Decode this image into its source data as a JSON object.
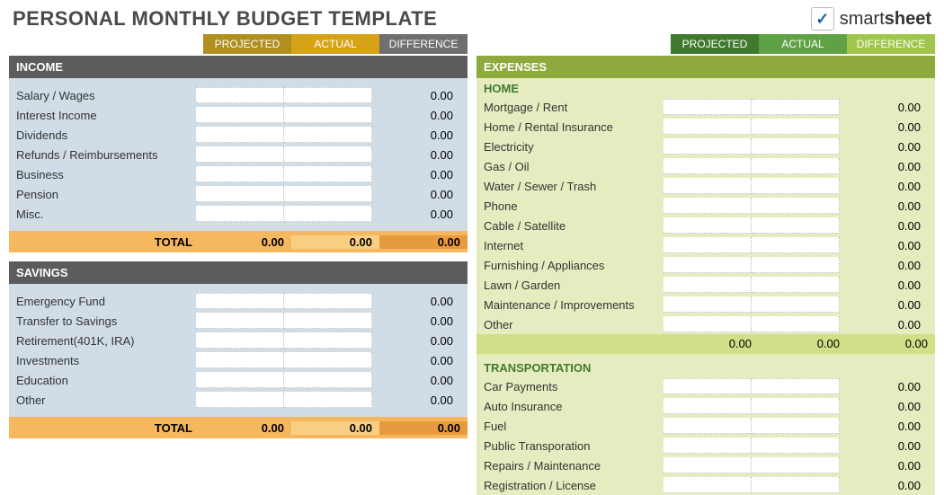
{
  "title": "PERSONAL MONTHLY BUDGET TEMPLATE",
  "logo": {
    "brand_bold": "smart",
    "brand_rest": "sheet"
  },
  "col_headers_left": {
    "projected": "PROJECTED",
    "actual": "ACTUAL",
    "difference": "DIFFERENCE"
  },
  "col_headers_right": {
    "projected": "PROJECTED",
    "actual": "ACTUAL",
    "difference": "DIFFERENCE"
  },
  "colors": {
    "left_headers": [
      "#b08f1f",
      "#d6a318",
      "#6f6f6f"
    ],
    "right_headers": [
      "#3f7a2f",
      "#5fa245",
      "#9fc64a"
    ],
    "section_gray": "#5c5c5c",
    "section_green": "#8ea93e",
    "panel_left": "#d0dde6",
    "panel_right": "#e7ecc0",
    "total_left_bg": "#f6b85e",
    "total_left_cells": [
      "#f6b85e",
      "#f9d083",
      "#e89a3e"
    ],
    "subtotal_right": "#cfe088",
    "subhead_text": "#3f7a2f"
  },
  "income": {
    "header": "INCOME",
    "items": [
      {
        "label": "Salary / Wages",
        "projected": "",
        "actual": "",
        "difference": "0.00"
      },
      {
        "label": "Interest Income",
        "projected": "",
        "actual": "",
        "difference": "0.00"
      },
      {
        "label": "Dividends",
        "projected": "",
        "actual": "",
        "difference": "0.00"
      },
      {
        "label": "Refunds / Reimbursements",
        "projected": "",
        "actual": "",
        "difference": "0.00"
      },
      {
        "label": "Business",
        "projected": "",
        "actual": "",
        "difference": "0.00"
      },
      {
        "label": "Pension",
        "projected": "",
        "actual": "",
        "difference": "0.00"
      },
      {
        "label": "Misc.",
        "projected": "",
        "actual": "",
        "difference": "0.00"
      }
    ],
    "total_label": "TOTAL",
    "total": {
      "projected": "0.00",
      "actual": "0.00",
      "difference": "0.00"
    }
  },
  "savings": {
    "header": "SAVINGS",
    "items": [
      {
        "label": "Emergency Fund",
        "projected": "",
        "actual": "",
        "difference": "0.00"
      },
      {
        "label": "Transfer to Savings",
        "projected": "",
        "actual": "",
        "difference": "0.00"
      },
      {
        "label": "Retirement(401K, IRA)",
        "projected": "",
        "actual": "",
        "difference": "0.00"
      },
      {
        "label": "Investments",
        "projected": "",
        "actual": "",
        "difference": "0.00"
      },
      {
        "label": "Education",
        "projected": "",
        "actual": "",
        "difference": "0.00"
      },
      {
        "label": "Other",
        "projected": "",
        "actual": "",
        "difference": "0.00"
      }
    ],
    "total_label": "TOTAL",
    "total": {
      "projected": "0.00",
      "actual": "0.00",
      "difference": "0.00"
    }
  },
  "expenses": {
    "header": "EXPENSES",
    "home": {
      "subhead": "HOME",
      "items": [
        {
          "label": "Mortgage / Rent",
          "difference": "0.00"
        },
        {
          "label": "Home / Rental Insurance",
          "difference": "0.00"
        },
        {
          "label": "Electricity",
          "difference": "0.00"
        },
        {
          "label": "Gas / Oil",
          "difference": "0.00"
        },
        {
          "label": "Water / Sewer / Trash",
          "difference": "0.00"
        },
        {
          "label": "Phone",
          "difference": "0.00"
        },
        {
          "label": "Cable / Satellite",
          "difference": "0.00"
        },
        {
          "label": "Internet",
          "difference": "0.00"
        },
        {
          "label": "Furnishing / Appliances",
          "difference": "0.00"
        },
        {
          "label": "Lawn / Garden",
          "difference": "0.00"
        },
        {
          "label": "Maintenance / Improvements",
          "difference": "0.00"
        },
        {
          "label": "Other",
          "difference": "0.00"
        }
      ],
      "subtotal": {
        "projected": "0.00",
        "actual": "0.00",
        "difference": "0.00"
      }
    },
    "transportation": {
      "subhead": "TRANSPORTATION",
      "items": [
        {
          "label": "Car Payments",
          "difference": "0.00"
        },
        {
          "label": "Auto Insurance",
          "difference": "0.00"
        },
        {
          "label": "Fuel",
          "difference": "0.00"
        },
        {
          "label": "Public Transporation",
          "difference": "0.00"
        },
        {
          "label": "Repairs / Maintenance",
          "difference": "0.00"
        },
        {
          "label": "Registration / License",
          "difference": "0.00"
        }
      ]
    }
  }
}
